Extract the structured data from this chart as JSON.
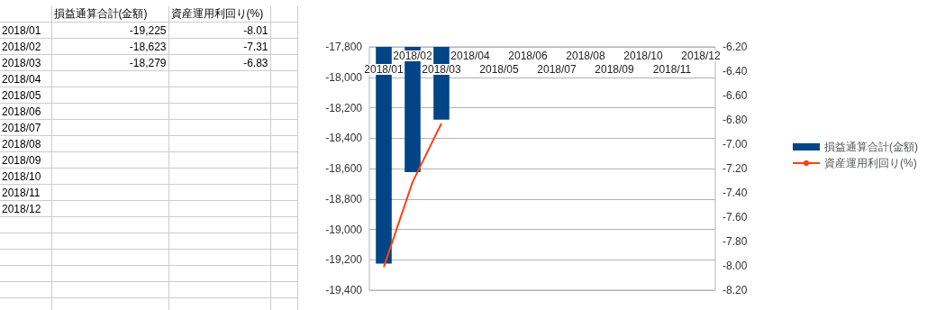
{
  "chart_data": [
    {
      "type": "other",
      "categories": [
        "2018/01",
        "2018/02",
        "2018/03",
        "2018/04",
        "2018/05",
        "2018/06",
        "2018/07",
        "2018/08",
        "2018/09",
        "2018/10",
        "2018/11",
        "2018/12"
      ],
      "series": [
        {
          "name": "損益通算合計(金額)",
          "values": [
            -19225,
            -18623,
            -18279,
            null,
            null,
            null,
            null,
            null,
            null,
            null,
            null,
            null
          ],
          "value_labels": [
            "-19,225",
            "-18,623",
            "-18,279",
            null,
            null,
            null,
            null,
            null,
            null,
            null,
            null,
            null
          ]
        },
        {
          "name": "資産運用利回り(%)",
          "values": [
            -8.01,
            -7.31,
            -6.83,
            null,
            null,
            null,
            null,
            null,
            null,
            null,
            null,
            null
          ],
          "value_labels": [
            "-8.01",
            "-7.31",
            "-6.83",
            null,
            null,
            null,
            null,
            null,
            null,
            null,
            null,
            null
          ]
        }
      ]
    },
    {
      "type": "bar",
      "categories": [
        "2018/01",
        "2018/02",
        "2018/03",
        "2018/04",
        "2018/05",
        "2018/06",
        "2018/07",
        "2018/08",
        "2018/09",
        "2018/10",
        "2018/11",
        "2018/12"
      ],
      "series": [
        {
          "name": "損益通算合計(金額)",
          "type": "bar",
          "color": "#004586",
          "values": [
            -19225,
            -18623,
            -18279,
            null,
            null,
            null,
            null,
            null,
            null,
            null,
            null,
            null
          ]
        },
        {
          "name": "資産運用利回り(%)",
          "type": "line",
          "axis": "y2",
          "color": "#ff420e",
          "values": [
            -8.01,
            -7.31,
            -6.83,
            null,
            null,
            null,
            null,
            null,
            null,
            null,
            null,
            null
          ]
        }
      ],
      "ylim": [
        -19400,
        -17800
      ],
      "yticks": [
        {
          "value": -19400,
          "label": "-19,400"
        },
        {
          "value": -19200,
          "label": "-19,200"
        },
        {
          "value": -19000,
          "label": "-19,000"
        },
        {
          "value": -18800,
          "label": "-18,800"
        },
        {
          "value": -18600,
          "label": "-18,600"
        },
        {
          "value": -18400,
          "label": "-18,400"
        },
        {
          "value": -18200,
          "label": "-18,200"
        },
        {
          "value": -18000,
          "label": "-18,000"
        },
        {
          "value": -17800,
          "label": "-17,800"
        }
      ],
      "y2lim": [
        -8.2,
        -6.2
      ],
      "y2ticks": [
        {
          "value": -8.2,
          "label": "-8.20"
        },
        {
          "value": -8,
          "label": "-8.00"
        },
        {
          "value": -7.8,
          "label": "-7.80"
        },
        {
          "value": -7.6,
          "label": "-7.60"
        },
        {
          "value": -7.4,
          "label": "-7.40"
        },
        {
          "value": -7.2,
          "label": "-7.20"
        },
        {
          "value": -7,
          "label": "-7.00"
        },
        {
          "value": -6.8,
          "label": "-6.80"
        },
        {
          "value": -6.6,
          "label": "-6.60"
        },
        {
          "value": -6.4,
          "label": "-6.40"
        },
        {
          "value": -6.2,
          "label": "-6.20"
        }
      ],
      "grid": "y",
      "legend": "right",
      "marker": "none"
    }
  ]
}
